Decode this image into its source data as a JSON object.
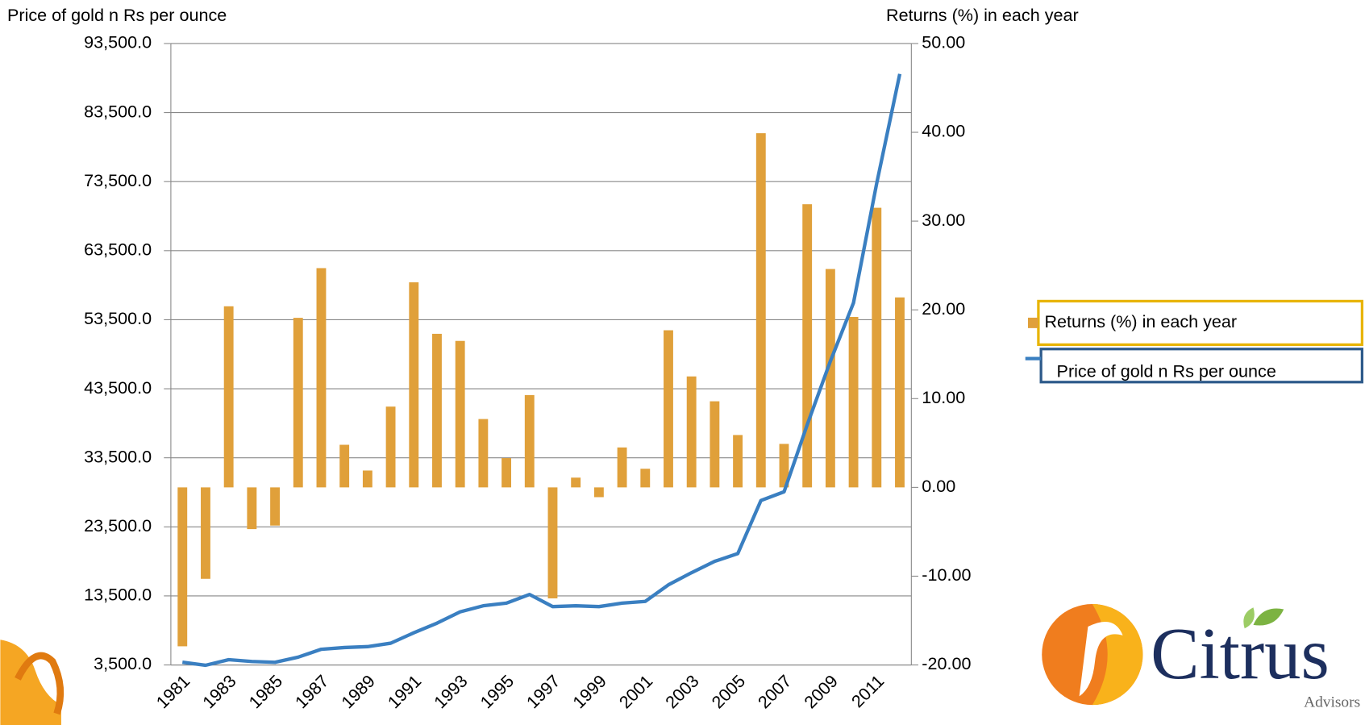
{
  "chart_data": {
    "type": "combo",
    "ylabel": "Price of gold n Rs per ounce",
    "y2label": "Returns (%) in each year",
    "categories": [
      "1981",
      null,
      "1983",
      null,
      "1985",
      null,
      "1987",
      null,
      "1989",
      null,
      "1991",
      null,
      "1993",
      null,
      "1995",
      null,
      "1997",
      null,
      "1999",
      null,
      "2001",
      null,
      "2003",
      null,
      "2005",
      null,
      "2007",
      null,
      "2009",
      null,
      "2011",
      null
    ],
    "series": [
      {
        "name": "Returns (%) in each year",
        "type": "bar",
        "axis": "y2",
        "color": "#e0a03a",
        "values": [
          -17.9,
          -10.3,
          20.4,
          -4.7,
          -4.3,
          19.1,
          24.7,
          4.8,
          1.9,
          9.1,
          23.1,
          17.3,
          16.5,
          7.7,
          3.3,
          10.4,
          -12.5,
          1.1,
          -1.1,
          4.5,
          2.1,
          17.7,
          12.5,
          9.7,
          5.9,
          39.9,
          4.9,
          31.9,
          24.6,
          19.2,
          31.5,
          21.4
        ]
      },
      {
        "name": "Price of gold n Rs per ounce",
        "type": "line",
        "color": "#3a7fc1",
        "values": [
          3900,
          3450,
          4260,
          4000,
          3880,
          4630,
          5770,
          6020,
          6150,
          6650,
          8160,
          9550,
          11190,
          12070,
          12450,
          13710,
          11950,
          12070,
          11950,
          12450,
          12700,
          15100,
          16860,
          18500,
          19630,
          27320,
          28580,
          38290,
          47490,
          55940,
          73200,
          89090
        ]
      }
    ],
    "ylim": [
      3500,
      93500
    ],
    "yticks": [
      {
        "value": 3500,
        "label": "3,500.0"
      },
      {
        "value": 13500,
        "label": "13,500.0"
      },
      {
        "value": 23500,
        "label": "23,500.0"
      },
      {
        "value": 33500,
        "label": "33,500.0"
      },
      {
        "value": 43500,
        "label": "43,500.0"
      },
      {
        "value": 53500,
        "label": "53,500.0"
      },
      {
        "value": 63500,
        "label": "63,500.0"
      },
      {
        "value": 73500,
        "label": "73,500.0"
      },
      {
        "value": 83500,
        "label": "83,500.0"
      },
      {
        "value": 93500,
        "label": "93,500.0"
      }
    ],
    "y2lim": [
      -20,
      50
    ],
    "y2ticks": [
      {
        "value": -20,
        "label": "-20.00"
      },
      {
        "value": -10,
        "label": "-10.00"
      },
      {
        "value": 0,
        "label": "0.00"
      },
      {
        "value": 10,
        "label": "10.00"
      },
      {
        "value": 20,
        "label": "20.00"
      },
      {
        "value": 30,
        "label": "30.00"
      },
      {
        "value": 40,
        "label": "40.00"
      },
      {
        "value": 50,
        "label": "50.00"
      }
    ],
    "grid": true,
    "legend": "right"
  },
  "logo": {
    "name": "Citrus",
    "sub": "Advisors"
  }
}
